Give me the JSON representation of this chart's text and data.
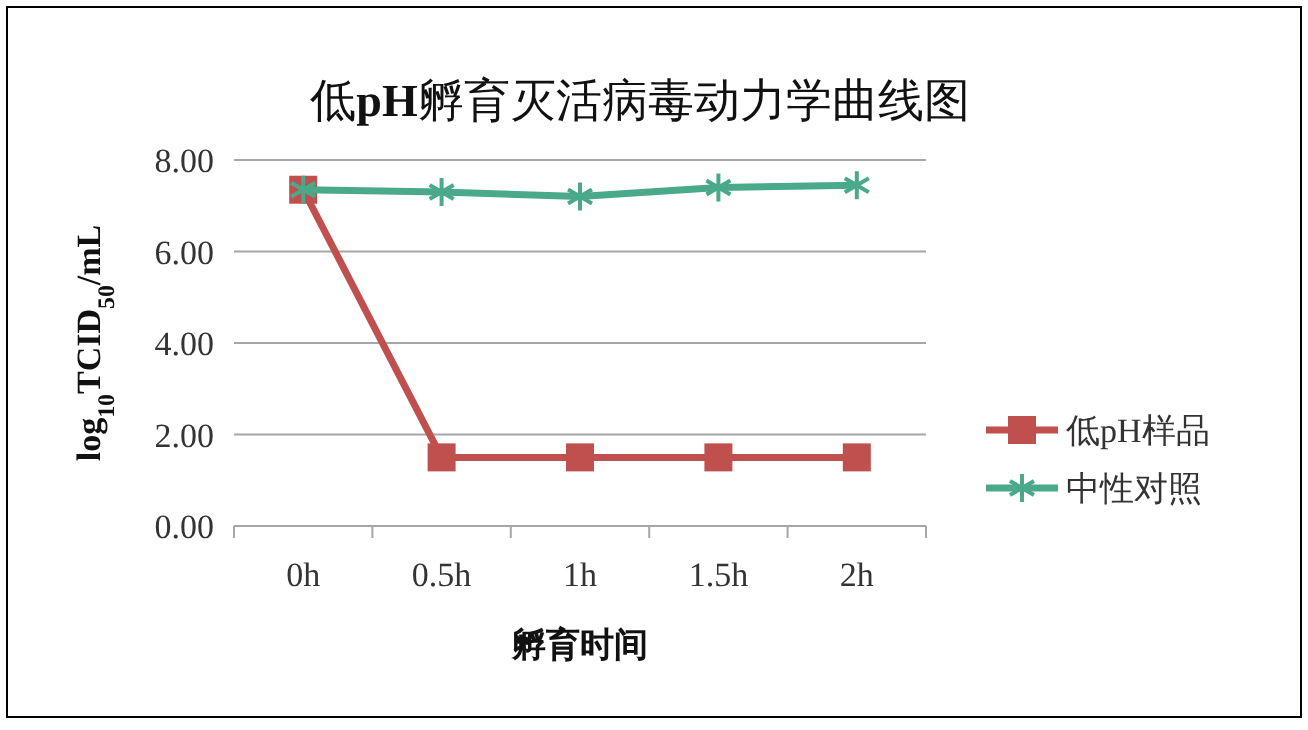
{
  "chart_data": {
    "type": "line",
    "title": "低**pH**孵育灭活病毒动力学曲线图",
    "xlabel": "孵育时间",
    "ylabel": "log$_{10}$TCID$_{50}$/mL",
    "categories": [
      "0h",
      "0.5h",
      "1h",
      "1.5h",
      "2h"
    ],
    "series": [
      {
        "name": "低pH样品",
        "color": "#c0504d",
        "marker": "square",
        "values": [
          7.35,
          1.5,
          1.5,
          1.5,
          1.5
        ]
      },
      {
        "name": "中性对照",
        "color": "#4aa98a",
        "marker": "cross",
        "values": [
          7.35,
          7.3,
          7.2,
          7.4,
          7.45
        ]
      }
    ],
    "ylim": [
      0,
      8
    ],
    "yticks": [
      {
        "value": 0,
        "label": "0.00"
      },
      {
        "value": 2,
        "label": "2.00"
      },
      {
        "value": 4,
        "label": "4.00"
      },
      {
        "value": 6,
        "label": "6.00"
      },
      {
        "value": 8,
        "label": "8.00"
      }
    ],
    "grid": "y",
    "legend": "right"
  }
}
